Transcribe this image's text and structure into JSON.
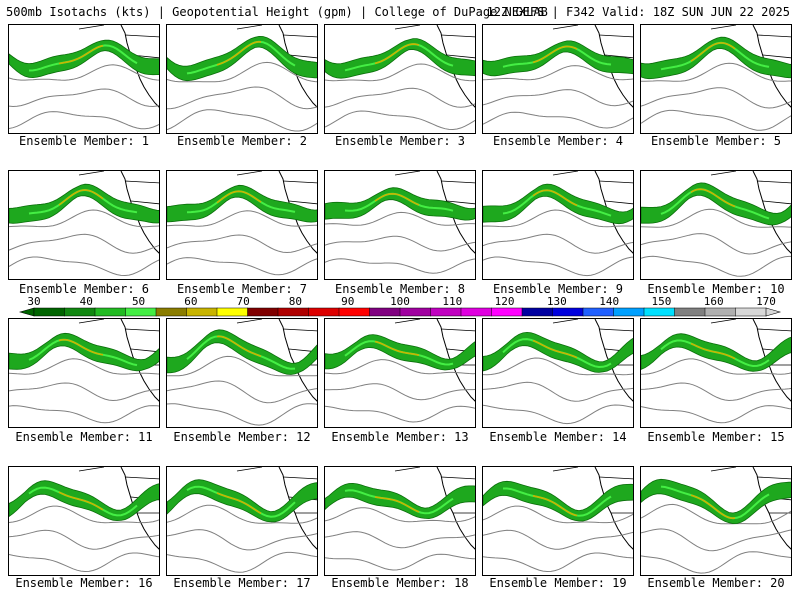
{
  "header": {
    "title": "500mb Isotachs (kts) | Geopotential Height (gpm) | College of DuPage NEXLAB",
    "run_info": "12Z GEFS | F342 Valid: 18Z SUN JUN 22 2025"
  },
  "members": [
    {
      "label": "Ensemble Member: 1",
      "shift": 0.0,
      "amp": 0.9
    },
    {
      "label": "Ensemble Member: 2",
      "shift": 0.18,
      "amp": 1.2
    },
    {
      "label": "Ensemble Member: 3",
      "shift": 0.35,
      "amp": 1.0
    },
    {
      "label": "Ensemble Member: 4",
      "shift": 0.52,
      "amp": 0.8
    },
    {
      "label": "Ensemble Member: 5",
      "shift": 0.7,
      "amp": 1.1
    },
    {
      "label": "Ensemble Member: 6",
      "shift": 0.88,
      "amp": 1.0
    },
    {
      "label": "Ensemble Member: 7",
      "shift": 1.05,
      "amp": 0.9
    },
    {
      "label": "Ensemble Member: 8",
      "shift": 1.22,
      "amp": 0.7
    },
    {
      "label": "Ensemble Member: 9",
      "shift": 1.4,
      "amp": 1.0
    },
    {
      "label": "Ensemble Member: 10",
      "shift": 1.58,
      "amp": 1.1
    },
    {
      "label": "Ensemble Member: 11",
      "shift": 1.75,
      "amp": 0.9
    },
    {
      "label": "Ensemble Member: 12",
      "shift": 1.92,
      "amp": 1.2
    },
    {
      "label": "Ensemble Member: 13",
      "shift": 2.1,
      "amp": 0.8
    },
    {
      "label": "Ensemble Member: 14",
      "shift": 2.28,
      "amp": 1.0
    },
    {
      "label": "Ensemble Member: 15",
      "shift": 2.45,
      "amp": 0.9
    },
    {
      "label": "Ensemble Member: 16",
      "shift": 2.62,
      "amp": 1.0
    },
    {
      "label": "Ensemble Member: 17",
      "shift": 2.8,
      "amp": 1.1
    },
    {
      "label": "Ensemble Member: 18",
      "shift": 2.98,
      "amp": 0.8
    },
    {
      "label": "Ensemble Member: 19",
      "shift": 3.15,
      "amp": 1.0
    },
    {
      "label": "Ensemble Member: 20",
      "shift": 3.32,
      "amp": 1.2
    }
  ],
  "colorbar": {
    "labels": [
      "30",
      "40",
      "50",
      "60",
      "70",
      "80",
      "90",
      "100",
      "110",
      "120",
      "130",
      "140",
      "150",
      "160",
      "170"
    ],
    "colors": [
      "#006400",
      "#118811",
      "#22bb22",
      "#44ee44",
      "#8b7d00",
      "#c8b400",
      "#ffff00",
      "#800000",
      "#b00000",
      "#dd0000",
      "#ff0000",
      "#800080",
      "#a000a0",
      "#c000c0",
      "#e000e0",
      "#ff00ff",
      "#0000a0",
      "#0000dd",
      "#2060ff",
      "#00a0ff",
      "#00e0ff",
      "#808080",
      "#b0b0b0",
      "#d8d8d8"
    ]
  }
}
